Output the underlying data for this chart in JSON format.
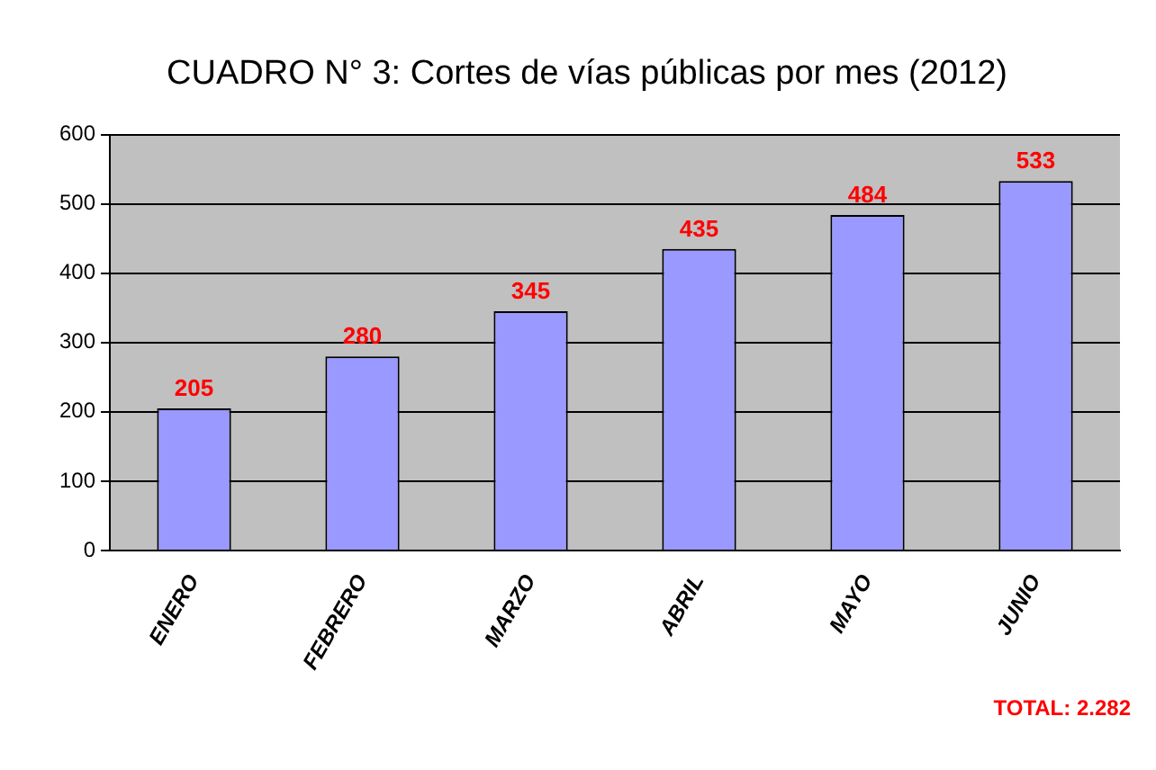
{
  "chart_data": {
    "type": "bar",
    "title": "CUADRO N° 3: Cortes de vías públicas por mes (2012)",
    "categories": [
      "ENERO",
      "FEBRERO",
      "MARZO",
      "ABRIL",
      "MAYO",
      "JUNIO"
    ],
    "values": [
      205,
      280,
      345,
      435,
      484,
      533
    ],
    "color": "#9999ff",
    "ylim": [
      0,
      600
    ],
    "yticks": [
      0,
      100,
      200,
      300,
      400,
      500,
      600
    ],
    "grid": "y",
    "data_labels": true,
    "legend": false,
    "annotations": [
      "TOTAL: 2.282"
    ]
  }
}
